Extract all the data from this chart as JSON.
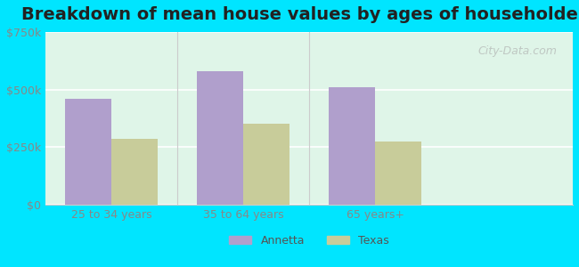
{
  "title": "Breakdown of mean house values by ages of householders",
  "categories": [
    "25 to 34 years",
    "35 to 64 years",
    "65 years+"
  ],
  "annetta_values": [
    460000,
    580000,
    510000
  ],
  "texas_values": [
    285000,
    350000,
    275000
  ],
  "bar_color_annetta": "#b09fcc",
  "bar_color_texas": "#c8cc9a",
  "ylim": [
    0,
    750000
  ],
  "yticks": [
    0,
    250000,
    500000,
    750000
  ],
  "ytick_labels": [
    "$0",
    "$250k",
    "$500k",
    "$750k"
  ],
  "legend_annetta": "Annetta",
  "legend_texas": "Texas",
  "bg_outer": "#00e5ff",
  "bg_inner_top": "#e8f5e9",
  "bg_inner_bottom": "#e0f7f4",
  "title_fontsize": 14,
  "bar_width": 0.35,
  "watermark": "City-Data.com"
}
